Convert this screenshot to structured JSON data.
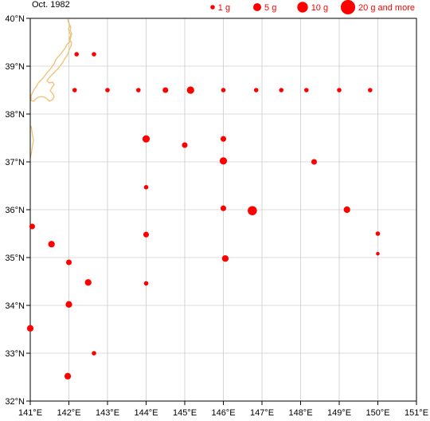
{
  "title": "Oct. 1982",
  "legend": [
    {
      "label": "1 g",
      "grams": 1
    },
    {
      "label": "5 g",
      "grams": 5
    },
    {
      "label": "10 g",
      "grams": 10
    },
    {
      "label": "20 g and more",
      "grams": 20
    }
  ],
  "colors": {
    "point": "#ff0000",
    "coast": "#f0c070",
    "frame": "#000000",
    "grid": "#bbbbbb"
  },
  "chart_data": {
    "type": "scatter",
    "x_range": [
      141,
      151
    ],
    "y_range": [
      32,
      40
    ],
    "grid": true,
    "legend_position": "top-right",
    "x_ticks": [
      "141°E",
      "142°E",
      "143°E",
      "144°E",
      "145°E",
      "146°E",
      "147°E",
      "148°E",
      "149°E",
      "150°E",
      "151°E"
    ],
    "y_ticks": [
      "32°N",
      "33°N",
      "34°N",
      "35°N",
      "36°N",
      "37°N",
      "38°N",
      "39°N",
      "40°N"
    ],
    "points": [
      {
        "lon": 142.2,
        "lat": 39.25,
        "grams": 1
      },
      {
        "lon": 142.65,
        "lat": 39.25,
        "grams": 1
      },
      {
        "lon": 142.15,
        "lat": 38.5,
        "grams": 1
      },
      {
        "lon": 143.0,
        "lat": 38.5,
        "grams": 1
      },
      {
        "lon": 143.8,
        "lat": 38.5,
        "grams": 1
      },
      {
        "lon": 144.5,
        "lat": 38.5,
        "grams": 2
      },
      {
        "lon": 145.15,
        "lat": 38.5,
        "grams": 4
      },
      {
        "lon": 146.0,
        "lat": 38.5,
        "grams": 1
      },
      {
        "lon": 146.85,
        "lat": 38.5,
        "grams": 1
      },
      {
        "lon": 147.5,
        "lat": 38.5,
        "grams": 1
      },
      {
        "lon": 148.15,
        "lat": 38.5,
        "grams": 1
      },
      {
        "lon": 149.0,
        "lat": 38.5,
        "grams": 1
      },
      {
        "lon": 149.8,
        "lat": 38.5,
        "grams": 1
      },
      {
        "lon": 144.0,
        "lat": 37.48,
        "grams": 4
      },
      {
        "lon": 146.0,
        "lat": 37.48,
        "grams": 2
      },
      {
        "lon": 145.0,
        "lat": 37.35,
        "grams": 2
      },
      {
        "lon": 146.0,
        "lat": 37.02,
        "grams": 4
      },
      {
        "lon": 148.35,
        "lat": 37.0,
        "grams": 2
      },
      {
        "lon": 144.0,
        "lat": 36.47,
        "grams": 1
      },
      {
        "lon": 146.0,
        "lat": 36.03,
        "grams": 2
      },
      {
        "lon": 146.75,
        "lat": 35.98,
        "grams": 7
      },
      {
        "lon": 149.2,
        "lat": 36.0,
        "grams": 3
      },
      {
        "lon": 141.05,
        "lat": 35.65,
        "grams": 2
      },
      {
        "lon": 144.0,
        "lat": 35.48,
        "grams": 2
      },
      {
        "lon": 150.0,
        "lat": 35.5,
        "grams": 1
      },
      {
        "lon": 141.55,
        "lat": 35.28,
        "grams": 3
      },
      {
        "lon": 150.0,
        "lat": 35.08,
        "grams": 0.5
      },
      {
        "lon": 146.05,
        "lat": 34.98,
        "grams": 3
      },
      {
        "lon": 142.0,
        "lat": 34.9,
        "grams": 2
      },
      {
        "lon": 142.5,
        "lat": 34.48,
        "grams": 3
      },
      {
        "lon": 144.0,
        "lat": 34.46,
        "grams": 1
      },
      {
        "lon": 142.0,
        "lat": 34.02,
        "grams": 3
      },
      {
        "lon": 141.0,
        "lat": 33.52,
        "grams": 3
      },
      {
        "lon": 142.65,
        "lat": 33.0,
        "grams": 1
      },
      {
        "lon": 141.97,
        "lat": 32.52,
        "grams": 3
      }
    ]
  }
}
